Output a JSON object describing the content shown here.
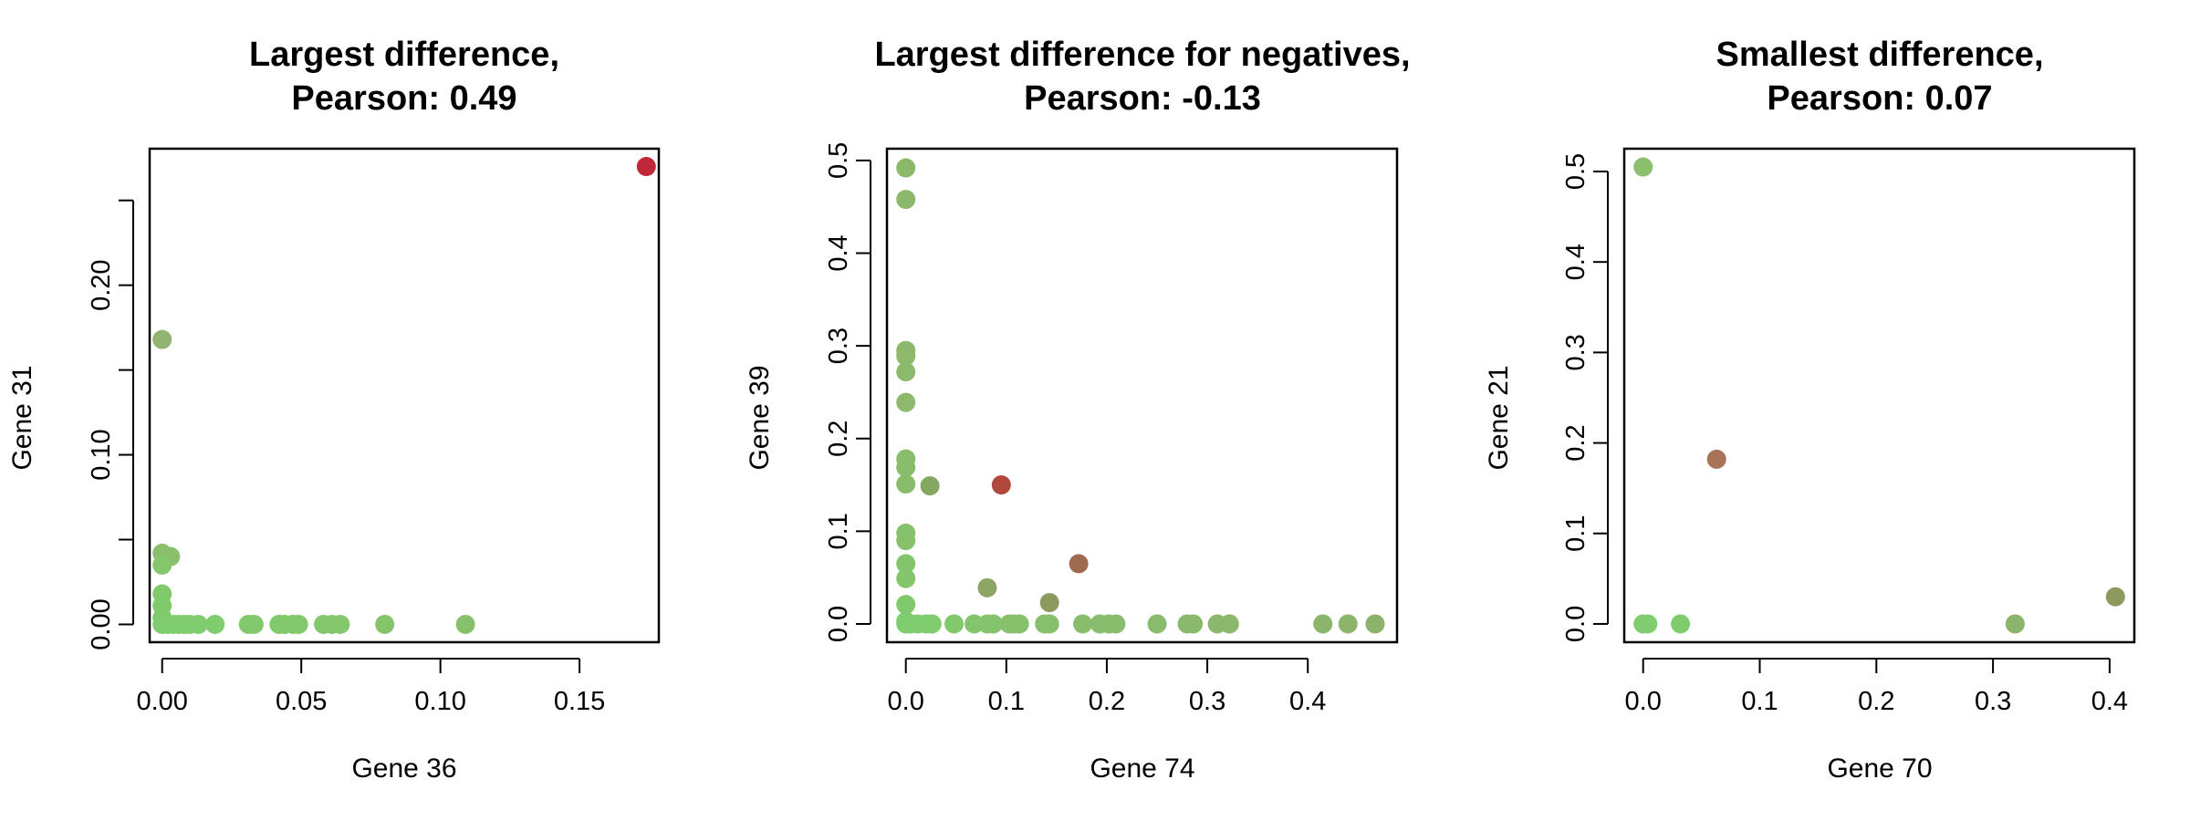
{
  "chart_data": [
    {
      "type": "scatter",
      "title": "Largest difference,",
      "subtitle": "Pearson: 0.49",
      "xlabel": "Gene 36",
      "ylabel": "Gene 31",
      "xlim": [
        -0.0045,
        0.1785
      ],
      "ylim": [
        -0.0105,
        0.2805
      ],
      "xticks": [
        {
          "v": 0,
          "label": "0.00"
        },
        {
          "v": 0.05,
          "label": "0.05"
        },
        {
          "v": 0.1,
          "label": "0.10"
        },
        {
          "v": 0.15,
          "label": "0.15"
        }
      ],
      "yticks": [
        {
          "v": 0,
          "label": "0.00"
        },
        {
          "v": 0.05,
          "label": ""
        },
        {
          "v": 0.1,
          "label": "0.10"
        },
        {
          "v": 0.15,
          "label": ""
        },
        {
          "v": 0.2,
          "label": "0.20"
        },
        {
          "v": 0.25,
          "label": ""
        }
      ],
      "grid": false,
      "points": [
        {
          "x": 0.174,
          "y": 0.27,
          "color": "#c0283a"
        },
        {
          "x": 0.0,
          "y": 0.168,
          "color": "#91b570"
        },
        {
          "x": 0.0,
          "y": 0.042,
          "color": "#8cbf6c"
        },
        {
          "x": 0.003,
          "y": 0.04,
          "color": "#8cbf6c"
        },
        {
          "x": 0.0,
          "y": 0.035,
          "color": "#85c76c"
        },
        {
          "x": 0.0,
          "y": 0.018,
          "color": "#82c96d"
        },
        {
          "x": 0.0,
          "y": 0.011,
          "color": "#80cc6d"
        },
        {
          "x": 0.0,
          "y": 0.004,
          "color": "#80cc6d"
        },
        {
          "x": 0.0,
          "y": 0.0,
          "color": "#7fcd6e"
        },
        {
          "x": 0.002,
          "y": 0.0,
          "color": "#7fcd6e"
        },
        {
          "x": 0.004,
          "y": 0.0,
          "color": "#7fcd6e"
        },
        {
          "x": 0.006,
          "y": 0.0,
          "color": "#7fcd6e"
        },
        {
          "x": 0.008,
          "y": 0.0,
          "color": "#7fcd6e"
        },
        {
          "x": 0.01,
          "y": 0.0,
          "color": "#7fcd6e"
        },
        {
          "x": 0.013,
          "y": 0.0,
          "color": "#7fcd6e"
        },
        {
          "x": 0.019,
          "y": 0.0,
          "color": "#7fcd6e"
        },
        {
          "x": 0.031,
          "y": 0.0,
          "color": "#82c96d"
        },
        {
          "x": 0.033,
          "y": 0.0,
          "color": "#82c96d"
        },
        {
          "x": 0.042,
          "y": 0.0,
          "color": "#82c96d"
        },
        {
          "x": 0.044,
          "y": 0.0,
          "color": "#82c96d"
        },
        {
          "x": 0.047,
          "y": 0.0,
          "color": "#82c96d"
        },
        {
          "x": 0.049,
          "y": 0.0,
          "color": "#82c96d"
        },
        {
          "x": 0.058,
          "y": 0.0,
          "color": "#84c76c"
        },
        {
          "x": 0.061,
          "y": 0.0,
          "color": "#84c76c"
        },
        {
          "x": 0.064,
          "y": 0.0,
          "color": "#84c76c"
        },
        {
          "x": 0.08,
          "y": 0.0,
          "color": "#86c46c"
        },
        {
          "x": 0.109,
          "y": 0.0,
          "color": "#88c16c"
        }
      ]
    },
    {
      "type": "scatter",
      "title": "Largest difference for negatives,",
      "subtitle": "Pearson: -0.13",
      "xlabel": "Gene 74",
      "ylabel": "Gene 39",
      "xlim": [
        -0.0188,
        0.4888
      ],
      "ylim": [
        -0.0197,
        0.5127
      ],
      "xticks": [
        {
          "v": 0,
          "label": "0.0"
        },
        {
          "v": 0.1,
          "label": "0.1"
        },
        {
          "v": 0.2,
          "label": "0.2"
        },
        {
          "v": 0.3,
          "label": "0.3"
        },
        {
          "v": 0.4,
          "label": "0.4"
        }
      ],
      "yticks": [
        {
          "v": 0,
          "label": "0.0"
        },
        {
          "v": 0.1,
          "label": "0.1"
        },
        {
          "v": 0.2,
          "label": "0.2"
        },
        {
          "v": 0.3,
          "label": "0.3"
        },
        {
          "v": 0.4,
          "label": "0.4"
        },
        {
          "v": 0.5,
          "label": "0.5"
        }
      ],
      "grid": false,
      "points": [
        {
          "x": 0.0,
          "y": 0.492,
          "color": "#8cb86c"
        },
        {
          "x": 0.0,
          "y": 0.458,
          "color": "#8cb86c"
        },
        {
          "x": 0.0,
          "y": 0.295,
          "color": "#8db96c"
        },
        {
          "x": 0.0,
          "y": 0.289,
          "color": "#8db96c"
        },
        {
          "x": 0.0,
          "y": 0.272,
          "color": "#8db96c"
        },
        {
          "x": 0.0,
          "y": 0.239,
          "color": "#8db96c"
        },
        {
          "x": 0.0,
          "y": 0.178,
          "color": "#89bd6c"
        },
        {
          "x": 0.0,
          "y": 0.169,
          "color": "#89bd6c"
        },
        {
          "x": 0.0,
          "y": 0.151,
          "color": "#89bd6c"
        },
        {
          "x": 0.024,
          "y": 0.149,
          "color": "#84a862"
        },
        {
          "x": 0.095,
          "y": 0.15,
          "color": "#b0483c"
        },
        {
          "x": 0.0,
          "y": 0.098,
          "color": "#86c26c"
        },
        {
          "x": 0.0,
          "y": 0.09,
          "color": "#86c26c"
        },
        {
          "x": 0.0,
          "y": 0.065,
          "color": "#84c56c"
        },
        {
          "x": 0.0,
          "y": 0.049,
          "color": "#84c56c"
        },
        {
          "x": 0.0,
          "y": 0.021,
          "color": "#80ca6d"
        },
        {
          "x": 0.0,
          "y": 0.003,
          "color": "#7fcd6e"
        },
        {
          "x": 0.0,
          "y": 0.0,
          "color": "#7fcd6e"
        },
        {
          "x": 0.005,
          "y": 0.0,
          "color": "#7fcd6e"
        },
        {
          "x": 0.012,
          "y": 0.0,
          "color": "#7fcd6e"
        },
        {
          "x": 0.02,
          "y": 0.0,
          "color": "#7fcd6e"
        },
        {
          "x": 0.026,
          "y": 0.0,
          "color": "#7fcd6e"
        },
        {
          "x": 0.048,
          "y": 0.0,
          "color": "#82c86d"
        },
        {
          "x": 0.068,
          "y": 0.0,
          "color": "#84c56c"
        },
        {
          "x": 0.081,
          "y": 0.039,
          "color": "#8da664"
        },
        {
          "x": 0.081,
          "y": 0.0,
          "color": "#84c46c"
        },
        {
          "x": 0.087,
          "y": 0.0,
          "color": "#85c36c"
        },
        {
          "x": 0.103,
          "y": 0.0,
          "color": "#86c16c"
        },
        {
          "x": 0.108,
          "y": 0.0,
          "color": "#86c16c"
        },
        {
          "x": 0.113,
          "y": 0.0,
          "color": "#86c16c"
        },
        {
          "x": 0.138,
          "y": 0.0,
          "color": "#88bf6c"
        },
        {
          "x": 0.143,
          "y": 0.023,
          "color": "#8b9b5e"
        },
        {
          "x": 0.143,
          "y": 0.0,
          "color": "#88bf6c"
        },
        {
          "x": 0.172,
          "y": 0.065,
          "color": "#a06a50"
        },
        {
          "x": 0.176,
          "y": 0.0,
          "color": "#89bd6c"
        },
        {
          "x": 0.193,
          "y": 0.0,
          "color": "#89bc6c"
        },
        {
          "x": 0.202,
          "y": 0.0,
          "color": "#89bc6c"
        },
        {
          "x": 0.209,
          "y": 0.0,
          "color": "#89bc6c"
        },
        {
          "x": 0.25,
          "y": 0.0,
          "color": "#8aba6c"
        },
        {
          "x": 0.28,
          "y": 0.0,
          "color": "#8ab96c"
        },
        {
          "x": 0.286,
          "y": 0.0,
          "color": "#8ab96c"
        },
        {
          "x": 0.31,
          "y": 0.0,
          "color": "#8bb86c"
        },
        {
          "x": 0.322,
          "y": 0.0,
          "color": "#8bb86c"
        },
        {
          "x": 0.415,
          "y": 0.0,
          "color": "#8cb56c"
        },
        {
          "x": 0.44,
          "y": 0.0,
          "color": "#8cb46c"
        },
        {
          "x": 0.467,
          "y": 0.0,
          "color": "#8cb36c"
        }
      ]
    },
    {
      "type": "scatter",
      "title": "Smallest difference,",
      "subtitle": "Pearson: 0.07",
      "xlabel": "Gene 70",
      "ylabel": "Gene 21",
      "xlim": [
        -0.0162,
        0.4212
      ],
      "ylim": [
        -0.0202,
        0.5252
      ],
      "xticks": [
        {
          "v": 0,
          "label": "0.0"
        },
        {
          "v": 0.1,
          "label": "0.1"
        },
        {
          "v": 0.2,
          "label": "0.2"
        },
        {
          "v": 0.3,
          "label": "0.3"
        },
        {
          "v": 0.4,
          "label": "0.4"
        }
      ],
      "yticks": [
        {
          "v": 0,
          "label": "0.0"
        },
        {
          "v": 0.1,
          "label": "0.1"
        },
        {
          "v": 0.2,
          "label": "0.2"
        },
        {
          "v": 0.3,
          "label": "0.3"
        },
        {
          "v": 0.4,
          "label": "0.4"
        },
        {
          "v": 0.5,
          "label": "0.5"
        }
      ],
      "grid": false,
      "points": [
        {
          "x": 0.0,
          "y": 0.505,
          "color": "#8cbf6c"
        },
        {
          "x": 0.063,
          "y": 0.182,
          "color": "#a87458"
        },
        {
          "x": 0.0,
          "y": 0.0,
          "color": "#7fcd6e"
        },
        {
          "x": 0.004,
          "y": 0.0,
          "color": "#7fcd6e"
        },
        {
          "x": 0.032,
          "y": 0.0,
          "color": "#80cb6d"
        },
        {
          "x": 0.319,
          "y": 0.0,
          "color": "#8bb56c"
        },
        {
          "x": 0.405,
          "y": 0.03,
          "color": "#8d9a5e"
        }
      ]
    }
  ]
}
